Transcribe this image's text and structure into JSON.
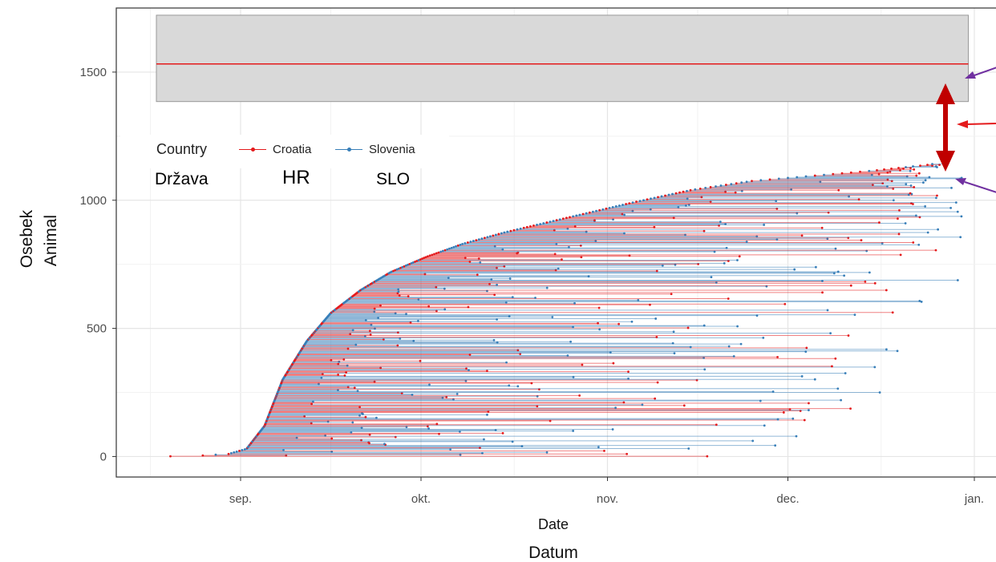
{
  "chart_data": {
    "type": "line",
    "xlabel": "Date",
    "xlabel_translation": "Datum",
    "ylabel": "Animal",
    "ylabel_translation": "Osebek",
    "x_ticks": [
      "sep.",
      "okt.",
      "nov.",
      "dec.",
      "jan."
    ],
    "y_ticks": [
      0,
      500,
      1000,
      1500
    ],
    "ylim": [
      -80,
      1750
    ],
    "xlim": [
      "2015-08-18",
      "2016-01-01"
    ],
    "grid": true,
    "legend": {
      "position": "top-left",
      "title": "Country",
      "title_translation": "Država",
      "entries": [
        {
          "name": "Croatia",
          "translation": "HR",
          "color": "#e41a1c"
        },
        {
          "name": "Slovenia",
          "translation": "SLO",
          "color": "#377eb8"
        }
      ]
    },
    "reference": {
      "value": 1532,
      "band": [
        1385,
        1722
      ],
      "x_range": [
        "2015-08-18",
        "2015-12-31"
      ],
      "line_color": "#e41a1c",
      "band_color": "#d9d9d9"
    },
    "series_summary": [
      {
        "name": "Croatia",
        "max_animal": 1142,
        "last_date": "2015-12-26"
      },
      {
        "name": "Slovenia",
        "max_animal": 1120,
        "last_date": "2015-12-30"
      }
    ],
    "cumulative_curve": [
      {
        "date": "2015-08-18",
        "animals": 0
      },
      {
        "date": "2015-08-25",
        "animals": 3
      },
      {
        "date": "2015-08-30",
        "animals": 10
      },
      {
        "date": "2015-09-02",
        "animals": 30
      },
      {
        "date": "2015-09-05",
        "animals": 120
      },
      {
        "date": "2015-09-08",
        "animals": 300
      },
      {
        "date": "2015-09-12",
        "animals": 450
      },
      {
        "date": "2015-09-16",
        "animals": 560
      },
      {
        "date": "2015-09-21",
        "animals": 650
      },
      {
        "date": "2015-09-26",
        "animals": 720
      },
      {
        "date": "2015-10-02",
        "animals": 780
      },
      {
        "date": "2015-10-08",
        "animals": 830
      },
      {
        "date": "2015-10-15",
        "animals": 875
      },
      {
        "date": "2015-10-25",
        "animals": 930
      },
      {
        "date": "2015-11-05",
        "animals": 990
      },
      {
        "date": "2015-11-15",
        "animals": 1040
      },
      {
        "date": "2015-11-25",
        "animals": 1075
      },
      {
        "date": "2015-12-05",
        "animals": 1095
      },
      {
        "date": "2015-12-15",
        "animals": 1115
      },
      {
        "date": "2015-12-25",
        "animals": 1140
      }
    ]
  },
  "colors": {
    "croatia": "#e41a1c",
    "slovenia": "#377eb8",
    "band": "#d9d9d9",
    "annotation_arrow": "#c00000",
    "pointer_arrow": "#7030a0"
  }
}
